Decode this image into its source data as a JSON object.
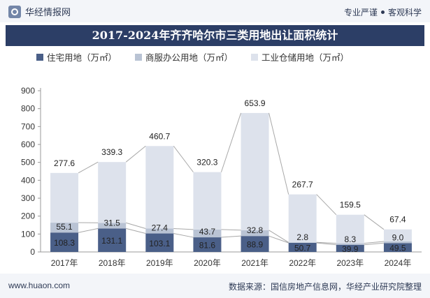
{
  "header": {
    "brand": "华经情报网",
    "slogan_left": "专业严谨",
    "slogan_right": "客观科学"
  },
  "chart_data": {
    "type": "bar",
    "stacked": true,
    "title": "2017-2024年齐齐哈尔市三类用地出让面积统计",
    "categories": [
      "2017年",
      "2018年",
      "2019年",
      "2020年",
      "2021年",
      "2022年",
      "2023年",
      "2024年"
    ],
    "series": [
      {
        "name": "住宅用地（万㎡）",
        "color": "#4a5f88",
        "values": [
          108.3,
          131.1,
          103.1,
          81.6,
          88.9,
          50.7,
          39.9,
          49.5
        ]
      },
      {
        "name": "商服办公用地（万㎡）",
        "color": "#b9c3d4",
        "values": [
          55.1,
          31.5,
          27.4,
          43.7,
          32.8,
          2.8,
          8.3,
          9.0
        ]
      },
      {
        "name": "工业仓储用地（万㎡）",
        "color": "#dde2ec",
        "values": [
          277.6,
          339.3,
          460.7,
          320.3,
          653.9,
          267.7,
          159.5,
          67.4
        ]
      }
    ],
    "yticks": [
      "0",
      "100",
      "200",
      "300",
      "400",
      "500",
      "600",
      "700",
      "800",
      "900"
    ],
    "ylim": [
      0,
      900
    ],
    "grid": false,
    "legend": "top-left"
  },
  "footer": {
    "website": "www.huaon.com",
    "source": "数据来源：国信房地产信息网，华经产业研究院整理"
  }
}
